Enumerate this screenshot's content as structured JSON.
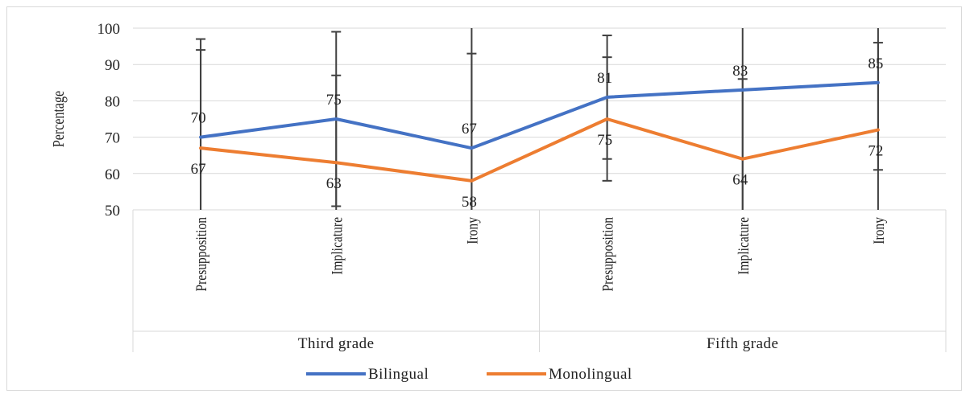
{
  "chart_data": {
    "type": "line",
    "title": "",
    "xlabel": "",
    "ylabel": "Percentage",
    "ylim": [
      50,
      100
    ],
    "yticks": [
      50,
      60,
      70,
      80,
      90,
      100
    ],
    "grid": true,
    "legend_position": "bottom",
    "groups": [
      {
        "label": "Third grade",
        "categories": [
          "Presupposition",
          "Implicature",
          "Irony"
        ]
      },
      {
        "label": "Fifth grade",
        "categories": [
          "Presupposition",
          "Implicature",
          "Irony"
        ]
      }
    ],
    "categories": [
      "Presupposition",
      "Implicature",
      "Irony",
      "Presupposition",
      "Implicature",
      "Irony"
    ],
    "series": [
      {
        "name": "Bilingual",
        "color": "#4472c4",
        "values": [
          70,
          75,
          67,
          81,
          83,
          85
        ]
      },
      {
        "name": "Monolingual",
        "color": "#ed7d31",
        "values": [
          67,
          63,
          58,
          75,
          64,
          72
        ]
      }
    ],
    "error_bars": [
      {
        "series": "Bilingual",
        "upper": [
          97,
          99,
          100,
          98,
          100,
          100
        ],
        "lower": [
          50,
          50,
          50,
          64,
          50,
          50
        ]
      },
      {
        "series": "Monolingual",
        "upper": [
          94,
          87,
          93,
          92,
          86,
          96
        ],
        "lower": [
          50,
          51,
          50,
          58,
          50,
          61
        ]
      }
    ]
  }
}
